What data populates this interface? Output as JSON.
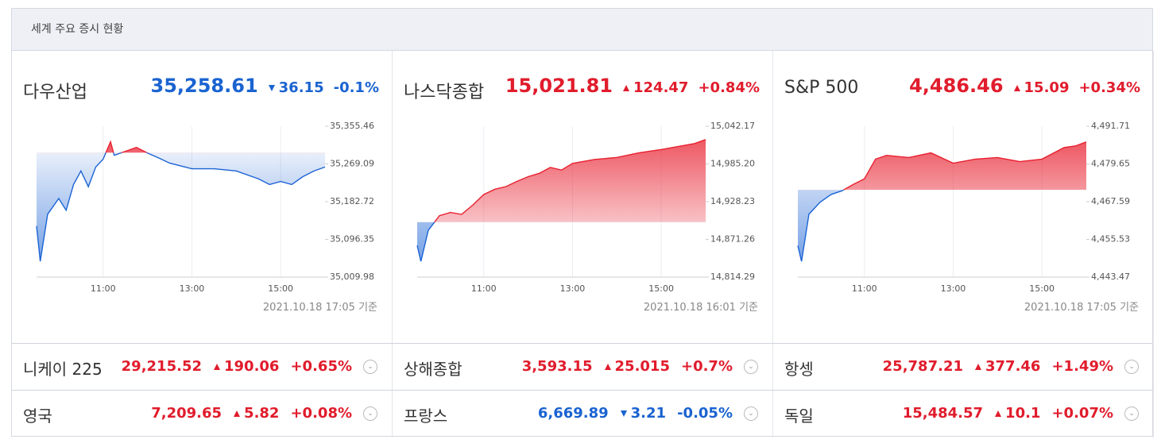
{
  "header": {
    "title": "세계 주요 증시 현황"
  },
  "panels": [
    {
      "name": "다우산업",
      "price": "35,258.61",
      "change": "36.15",
      "change_pct": "-0.1%",
      "direction": "down",
      "updated": "2021.10.18 17:05 기준",
      "chart_data": {
        "type": "line",
        "x": [
          "09:30",
          "09:35",
          "09:45",
          "10:00",
          "10:10",
          "10:20",
          "10:30",
          "10:40",
          "10:50",
          "11:00",
          "11:10",
          "11:15",
          "11:30",
          "11:45",
          "12:00",
          "12:15",
          "12:30",
          "13:00",
          "13:30",
          "14:00",
          "14:30",
          "14:45",
          "15:00",
          "15:15",
          "15:30",
          "15:45",
          "16:00"
        ],
        "values": [
          35127,
          35046,
          35154,
          35190,
          35163,
          35222,
          35253,
          35217,
          35262,
          35280,
          35320,
          35289,
          35298,
          35307,
          35294,
          35283,
          35271,
          35258,
          35258,
          35253,
          35235,
          35222,
          35229,
          35222,
          35240,
          35253,
          35262
        ],
        "baseline": 35294.76,
        "up_color": "#e8202f",
        "down_color": "#1b63d4",
        "xlim": [
          "09:30",
          "16:00"
        ],
        "xticks": [
          "11:00",
          "13:00",
          "15:00"
        ],
        "ylim": [
          35009.98,
          35355.46
        ],
        "yticks": [
          {
            "value": 35355.46,
            "label": "35,355.46"
          },
          {
            "value": 35269.09,
            "label": "35,269.09"
          },
          {
            "value": 35182.72,
            "label": "35,182.72"
          },
          {
            "value": 35096.35,
            "label": "35,096.35"
          },
          {
            "value": 35009.98,
            "label": "35,009.98"
          }
        ],
        "grid": true
      }
    },
    {
      "name": "나스닥종합",
      "price": "15,021.81",
      "change": "124.47",
      "change_pct": "+0.84%",
      "direction": "up",
      "updated": "2021.10.18 16:01 기준",
      "chart_data": {
        "type": "line",
        "x": [
          "09:30",
          "09:35",
          "09:45",
          "10:00",
          "10:15",
          "10:30",
          "10:45",
          "11:00",
          "11:15",
          "11:30",
          "11:45",
          "12:00",
          "12:15",
          "12:30",
          "12:45",
          "13:00",
          "13:30",
          "14:00",
          "14:30",
          "15:00",
          "15:15",
          "15:30",
          "15:45",
          "16:00"
        ],
        "values": [
          14862,
          14838,
          14885,
          14907,
          14912,
          14909,
          14923,
          14939,
          14947,
          14951,
          14959,
          14966,
          14971,
          14980,
          14976,
          14986,
          14992,
          14995,
          15002,
          15007,
          15010,
          15013,
          15016,
          15022
        ],
        "baseline": 14897.34,
        "up_color": "#e8202f",
        "down_color": "#1b63d4",
        "xlim": [
          "09:30",
          "16:00"
        ],
        "xticks": [
          "11:00",
          "13:00",
          "15:00"
        ],
        "ylim": [
          14814.29,
          15042.17
        ],
        "yticks": [
          {
            "value": 15042.17,
            "label": "15,042.17"
          },
          {
            "value": 14985.2,
            "label": "14,985.20"
          },
          {
            "value": 14928.23,
            "label": "14,928.23"
          },
          {
            "value": 14871.26,
            "label": "14,871.26"
          },
          {
            "value": 14814.29,
            "label": "14,814.29"
          }
        ],
        "grid": true
      }
    },
    {
      "name": "S&P 500",
      "price": "4,486.46",
      "change": "15.09",
      "change_pct": "+0.34%",
      "direction": "up",
      "updated": "2021.10.18 17:05 기준",
      "chart_data": {
        "type": "line",
        "x": [
          "09:30",
          "09:35",
          "09:45",
          "10:00",
          "10:15",
          "10:30",
          "10:45",
          "11:00",
          "11:15",
          "11:30",
          "12:00",
          "12:30",
          "13:00",
          "13:30",
          "14:00",
          "14:30",
          "15:00",
          "15:30",
          "15:45",
          "16:00"
        ],
        "values": [
          4453.5,
          4448.5,
          4463.6,
          4467.4,
          4469.9,
          4471.1,
          4473.1,
          4474.9,
          4481.2,
          4482.4,
          4481.7,
          4483.2,
          4479.9,
          4481.2,
          4481.7,
          4480.4,
          4481.2,
          4484.9,
          4485.4,
          4486.7
        ],
        "baseline": 4471.37,
        "up_color": "#e8202f",
        "down_color": "#1b63d4",
        "xlim": [
          "09:30",
          "16:00"
        ],
        "xticks": [
          "11:00",
          "13:00",
          "15:00"
        ],
        "ylim": [
          4443.47,
          4491.71
        ],
        "yticks": [
          {
            "value": 4491.71,
            "label": "4,491.71"
          },
          {
            "value": 4479.65,
            "label": "4,479.65"
          },
          {
            "value": 4467.59,
            "label": "4,467.59"
          },
          {
            "value": 4455.53,
            "label": "4,455.53"
          },
          {
            "value": 4443.47,
            "label": "4,443.47"
          }
        ],
        "grid": true
      }
    }
  ],
  "rows": [
    [
      {
        "name": "니케이 225",
        "price": "29,215.52",
        "change": "190.06",
        "change_pct": "+0.65%",
        "direction": "up"
      },
      {
        "name": "상해종합",
        "price": "3,593.15",
        "change": "25.015",
        "change_pct": "+0.7%",
        "direction": "up"
      },
      {
        "name": "항셍",
        "price": "25,787.21",
        "change": "377.46",
        "change_pct": "+1.49%",
        "direction": "up"
      }
    ],
    [
      {
        "name": "영국",
        "price": "7,209.65",
        "change": "5.82",
        "change_pct": "+0.08%",
        "direction": "up"
      },
      {
        "name": "프랑스",
        "price": "6,669.89",
        "change": "3.21",
        "change_pct": "-0.05%",
        "direction": "down"
      },
      {
        "name": "독일",
        "price": "15,484.57",
        "change": "10.1",
        "change_pct": "+0.07%",
        "direction": "up"
      }
    ]
  ]
}
